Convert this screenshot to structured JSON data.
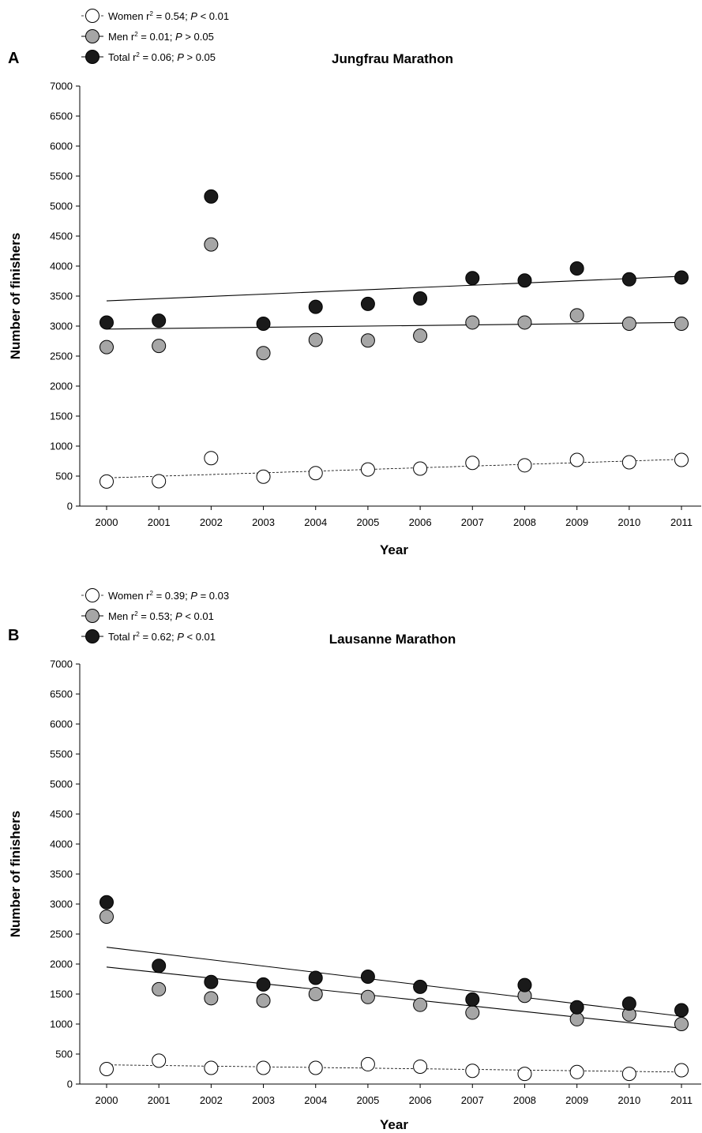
{
  "chart_data": [
    {
      "type": "scatter",
      "panel": "A",
      "title": "Jungfrau Marathon",
      "xlabel": "Year",
      "ylabel": "Number of  finishers",
      "x": [
        2000,
        2001,
        2002,
        2003,
        2004,
        2005,
        2006,
        2007,
        2008,
        2009,
        2010,
        2011
      ],
      "xlim": [
        2000,
        2011
      ],
      "ylim": [
        0,
        7000
      ],
      "yticks": [
        0,
        500,
        1000,
        1500,
        2000,
        2500,
        3000,
        3500,
        4000,
        4500,
        5000,
        5500,
        6000,
        6500,
        7000
      ],
      "legend_position": "top-left",
      "series": [
        {
          "key": "women",
          "name": "Women",
          "legend_prefix": "Women r",
          "legend_sup": "2",
          "legend_mid": " = 0.54; ",
          "legend_p": "P",
          "legend_rest": " < 0.01",
          "marker_fill": "#ffffff",
          "line_style": "dashed",
          "values": [
            410,
            415,
            800,
            490,
            550,
            610,
            625,
            720,
            680,
            770,
            730,
            770
          ],
          "trend": [
            470,
            780
          ]
        },
        {
          "key": "men",
          "name": "Men",
          "legend_prefix": "Men r",
          "legend_sup": "2",
          "legend_mid": " = 0.01; ",
          "legend_p": "P",
          "legend_rest": " > 0.05",
          "marker_fill": "#a6a6a6",
          "line_style": "solid",
          "values": [
            2650,
            2670,
            4360,
            2550,
            2770,
            2760,
            2840,
            3060,
            3060,
            3180,
            3040,
            3040
          ],
          "trend": [
            2950,
            3060
          ]
        },
        {
          "key": "total",
          "name": "Total",
          "legend_prefix": "Total r",
          "legend_sup": "2",
          "legend_mid": " = 0.06; ",
          "legend_p": "P",
          "legend_rest": " > 0.05",
          "marker_fill": "#1a1a1a",
          "line_style": "solid",
          "values": [
            3060,
            3090,
            5160,
            3040,
            3320,
            3370,
            3460,
            3800,
            3760,
            3960,
            3780,
            3810
          ],
          "trend": [
            3420,
            3830
          ]
        }
      ]
    },
    {
      "type": "scatter",
      "panel": "B",
      "title": "Lausanne Marathon",
      "xlabel": "Year",
      "ylabel": "Number of  finishers",
      "x": [
        2000,
        2001,
        2002,
        2003,
        2004,
        2005,
        2006,
        2007,
        2008,
        2009,
        2010,
        2011
      ],
      "xlim": [
        2000,
        2011
      ],
      "ylim": [
        0,
        7000
      ],
      "yticks": [
        0,
        500,
        1000,
        1500,
        2000,
        2500,
        3000,
        3500,
        4000,
        4500,
        5000,
        5500,
        6000,
        6500,
        7000
      ],
      "legend_position": "top-left",
      "series": [
        {
          "key": "women",
          "name": "Women",
          "legend_prefix": "Women r",
          "legend_sup": "2",
          "legend_mid": " = 0.39; ",
          "legend_p": "P",
          "legend_rest": " = 0.03",
          "marker_fill": "#ffffff",
          "line_style": "dashed",
          "values": [
            250,
            390,
            270,
            270,
            270,
            330,
            290,
            220,
            170,
            200,
            170,
            230
          ],
          "trend": [
            320,
            200
          ]
        },
        {
          "key": "men",
          "name": "Men",
          "legend_prefix": "Men r",
          "legend_sup": "2",
          "legend_mid": " = 0.53; ",
          "legend_p": "P",
          "legend_rest": " < 0.01",
          "marker_fill": "#a6a6a6",
          "line_style": "solid",
          "values": [
            2790,
            1580,
            1430,
            1390,
            1500,
            1450,
            1320,
            1190,
            1470,
            1080,
            1160,
            1000
          ],
          "trend": [
            1950,
            930
          ]
        },
        {
          "key": "total",
          "name": "Total",
          "legend_prefix": "Total r",
          "legend_sup": "2",
          "legend_mid": " = 0.62; ",
          "legend_p": "P",
          "legend_rest": " < 0.01",
          "marker_fill": "#1a1a1a",
          "line_style": "solid",
          "values": [
            3030,
            1970,
            1700,
            1660,
            1770,
            1790,
            1620,
            1410,
            1650,
            1280,
            1340,
            1230
          ],
          "trend": [
            2280,
            1130
          ]
        }
      ]
    }
  ]
}
